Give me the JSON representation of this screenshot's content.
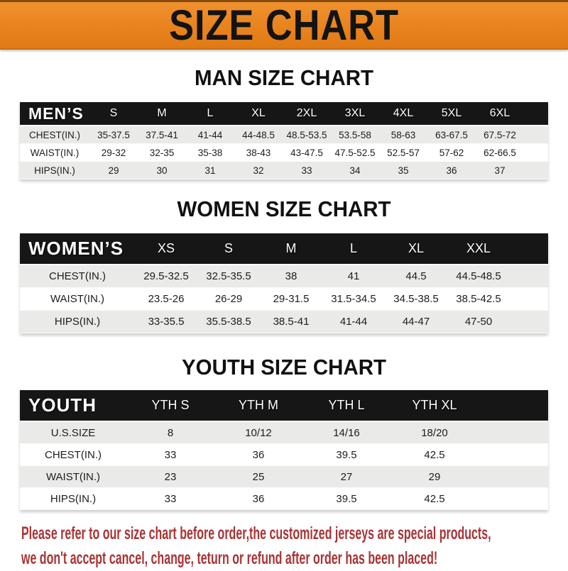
{
  "banner": {
    "title": "SIZE CHART"
  },
  "colors": {
    "banner_orange": "#E8831E",
    "table_header_black": "#161616",
    "row_stripe_gray": "#EAEAE8",
    "footer_red": "#A93334"
  },
  "sections": {
    "men": {
      "heading": "MAN SIZE CHART",
      "table": {
        "corner_label": "MEN’S",
        "size_headers": [
          "S",
          "M",
          "L",
          "XL",
          "2XL",
          "3XL",
          "4XL",
          "5XL",
          "6XL"
        ],
        "rows": [
          {
            "label": "CHEST(IN.)",
            "values": [
              "35-37.5",
              "37.5-41",
              "41-44",
              "44-48.5",
              "48.5-53.5",
              "53.5-58",
              "58-63",
              "63-67.5",
              "67.5-72"
            ]
          },
          {
            "label": "WAIST(IN.)",
            "values": [
              "29-32",
              "32-35",
              "35-38",
              "38-43",
              "43-47.5",
              "47.5-52.5",
              "52.5-57",
              "57-62",
              "62-66.5"
            ]
          },
          {
            "label": "HIPS(IN.)",
            "values": [
              "29",
              "30",
              "31",
              "32",
              "33",
              "34",
              "35",
              "36",
              "37"
            ]
          }
        ]
      }
    },
    "women": {
      "heading": "WOMEN SIZE CHART",
      "table": {
        "corner_label": "WOMEN’S",
        "size_headers": [
          "XS",
          "S",
          "M",
          "L",
          "XL",
          "XXL"
        ],
        "rows": [
          {
            "label": "CHEST(IN.)",
            "values": [
              "29.5-32.5",
              "32.5-35.5",
              "38",
              "41",
              "44.5",
              "44.5-48.5"
            ]
          },
          {
            "label": "WAIST(IN.)",
            "values": [
              "23.5-26",
              "26-29",
              "29-31.5",
              "31.5-34.5",
              "34.5-38.5",
              "38.5-42.5"
            ]
          },
          {
            "label": "HIPS(IN.)",
            "values": [
              "33-35.5",
              "35.5-38.5",
              "38.5-41",
              "41-44",
              "44-47",
              "47-50"
            ]
          }
        ]
      }
    },
    "youth": {
      "heading": "YOUTH SIZE CHART",
      "table": {
        "corner_label": "YOUTH",
        "size_headers": [
          "YTH S",
          "YTH M",
          "YTH L",
          "YTH XL"
        ],
        "rows": [
          {
            "label": "U.S.SIZE",
            "values": [
              "8",
              "10/12",
              "14/16",
              "18/20"
            ]
          },
          {
            "label": "CHEST(IN.)",
            "values": [
              "33",
              "36",
              "39.5",
              "42.5"
            ]
          },
          {
            "label": "WAIST(IN.)",
            "values": [
              "23",
              "25",
              "27",
              "29"
            ]
          },
          {
            "label": "HIPS(IN.)",
            "values": [
              "33",
              "36",
              "39.5",
              "42.5"
            ]
          }
        ]
      }
    }
  },
  "footer": {
    "lines": [
      "Please refer to our size chart before order,the customized jerseys are special products,",
      "we don't accept cancel, change, teturn or refund after order has been placed!"
    ]
  }
}
